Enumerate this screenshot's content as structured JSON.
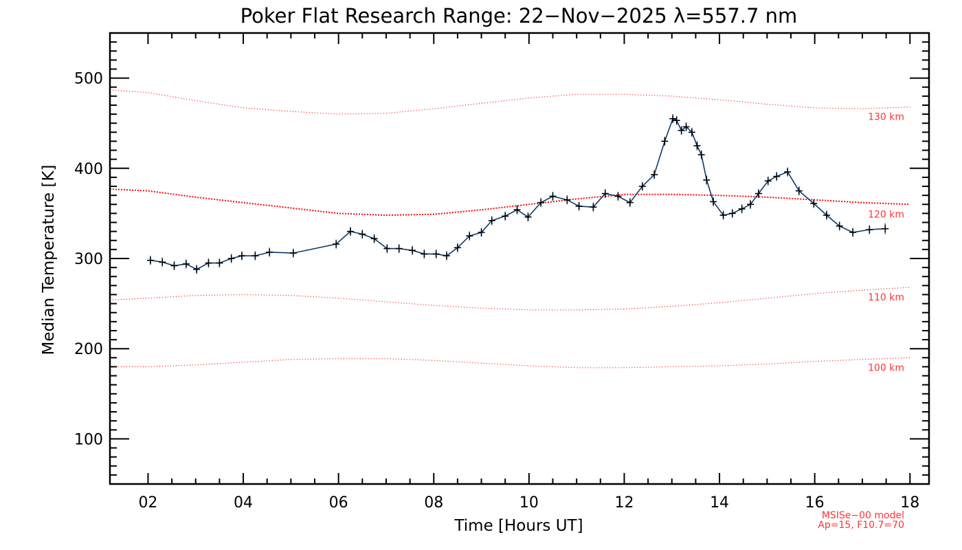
{
  "chart_data": {
    "type": "line",
    "title": "Poker Flat Research Range: 22−Nov−2025 λ=557.7 nm",
    "xlabel": "Time [Hours UT]",
    "ylabel": "Median Temperature [K]",
    "xlim": [
      1.2,
      18.4
    ],
    "ylim": [
      50,
      550
    ],
    "x_ticks": [
      2,
      4,
      6,
      8,
      10,
      12,
      14,
      16,
      18
    ],
    "x_tick_labels": [
      "02",
      "04",
      "06",
      "08",
      "10",
      "12",
      "14",
      "16",
      "18"
    ],
    "y_ticks": [
      100,
      200,
      300,
      400,
      500
    ],
    "y_tick_labels": [
      "100",
      "200",
      "300",
      "400",
      "500"
    ],
    "note_lines": [
      "MSISe−00 model",
      "Ap=15, F10.7=70"
    ],
    "colors": {
      "data": "#0b3a6e",
      "marker": "#000000",
      "model": "#ff0000"
    },
    "series": [
      {
        "name": "Median temperature",
        "x": [
          2.05,
          2.3,
          2.55,
          2.8,
          3.02,
          3.27,
          3.5,
          3.75,
          3.97,
          4.25,
          4.55,
          5.05,
          5.95,
          6.25,
          6.5,
          6.75,
          7.02,
          7.27,
          7.55,
          7.8,
          8.05,
          8.27,
          8.5,
          8.75,
          9.0,
          9.22,
          9.5,
          9.75,
          9.98,
          10.25,
          10.5,
          10.8,
          11.05,
          11.35,
          11.6,
          11.87,
          12.12,
          12.38,
          12.63,
          12.85,
          13.02,
          13.1,
          13.2,
          13.3,
          13.42,
          13.53,
          13.62,
          13.73,
          13.87,
          14.08,
          14.27,
          14.47,
          14.65,
          14.82,
          15.02,
          15.2,
          15.43,
          15.67,
          15.98,
          16.25,
          16.52,
          16.8,
          17.15,
          17.48
        ],
        "values": [
          298,
          296,
          292,
          294,
          288,
          295,
          295,
          300,
          303,
          303,
          307,
          306,
          316,
          330,
          327,
          322,
          311,
          311,
          309,
          305,
          305,
          303,
          312,
          325,
          329,
          342,
          347,
          354,
          346,
          362,
          369,
          365,
          358,
          357,
          372,
          369,
          362,
          380,
          393,
          430,
          455,
          453,
          442,
          446,
          440,
          425,
          415,
          387,
          363,
          348,
          350,
          355,
          360,
          372,
          386,
          391,
          396,
          375,
          361,
          348,
          336,
          329,
          332,
          333
        ],
        "errors": [
          5,
          5,
          5,
          5,
          5,
          5,
          5,
          5,
          5,
          5,
          5,
          5,
          5,
          5,
          5,
          5,
          5,
          5,
          5,
          5,
          5,
          5,
          5,
          5,
          5,
          5,
          5,
          5,
          5,
          5,
          5,
          5,
          5,
          5,
          5,
          5,
          5,
          5,
          5,
          5,
          5,
          5,
          5,
          5,
          5,
          5,
          5,
          5,
          5,
          5,
          5,
          5,
          5,
          5,
          5,
          5,
          5,
          5,
          5,
          5,
          5,
          5,
          5,
          6
        ]
      }
    ],
    "model_curves": [
      {
        "label": "130 km",
        "style": "thin",
        "x": [
          1.2,
          2,
          3,
          4,
          5,
          6,
          7,
          8,
          9,
          10,
          11,
          12,
          13,
          14,
          15,
          16,
          17,
          18
        ],
        "values": [
          487,
          484,
          475,
          467,
          463,
          460,
          461,
          466,
          472,
          478,
          482,
          482,
          480,
          476,
          471,
          467,
          466,
          468
        ]
      },
      {
        "label": "120 km",
        "style": "thick",
        "x": [
          1.2,
          2,
          3,
          4,
          5,
          6,
          7,
          8,
          9,
          10,
          11,
          12,
          13,
          14,
          15,
          16,
          17,
          18
        ],
        "values": [
          377,
          375,
          368,
          362,
          356,
          350,
          348,
          349,
          354,
          360,
          366,
          371,
          371,
          370,
          368,
          365,
          362,
          360
        ]
      },
      {
        "label": "110 km",
        "style": "thin",
        "x": [
          1.2,
          2,
          3,
          4,
          5,
          6,
          7,
          8,
          9,
          10,
          11,
          12,
          13,
          14,
          15,
          16,
          17,
          18
        ],
        "values": [
          254,
          256,
          259,
          260,
          259,
          256,
          252,
          248,
          245,
          243,
          243,
          244,
          247,
          251,
          256,
          261,
          265,
          268
        ]
      },
      {
        "label": "100 km",
        "style": "thin",
        "x": [
          1.2,
          2,
          3,
          4,
          5,
          6,
          7,
          8,
          9,
          10,
          11,
          12,
          13,
          14,
          15,
          16,
          17,
          18
        ],
        "values": [
          180,
          180,
          182,
          185,
          188,
          189,
          189,
          187,
          184,
          181,
          179,
          179,
          180,
          181,
          183,
          186,
          188,
          190
        ]
      }
    ]
  }
}
